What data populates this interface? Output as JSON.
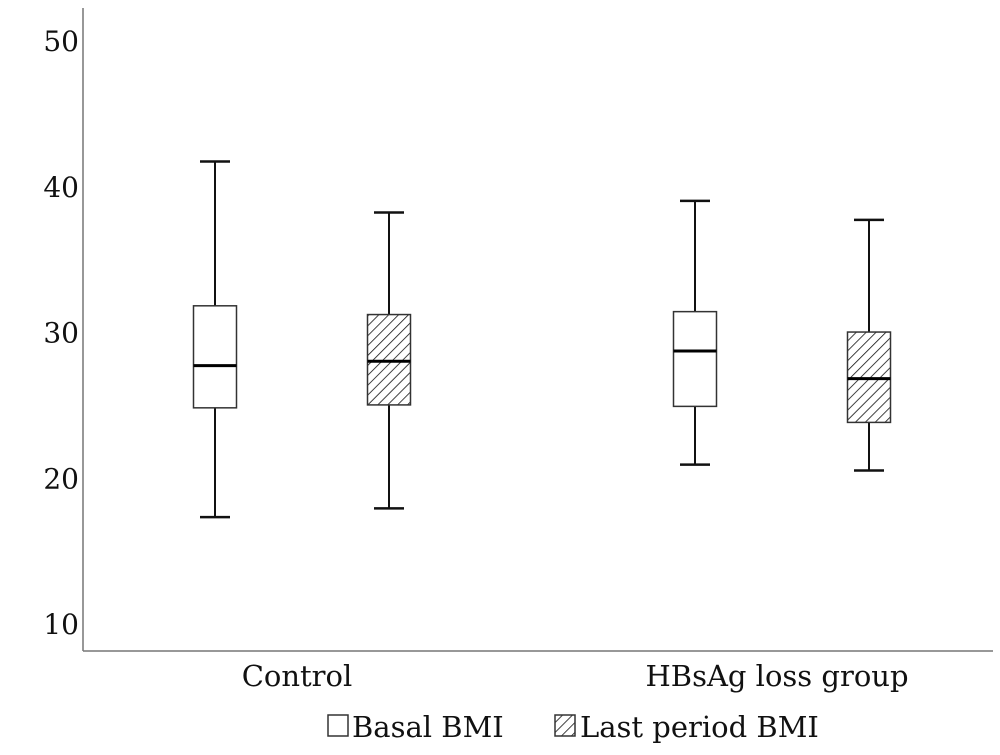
{
  "chart_data": {
    "type": "boxplot",
    "title": "",
    "xlabel": "",
    "ylabel": "",
    "ylim": [
      10,
      50
    ],
    "yticks": [
      10,
      20,
      30,
      40,
      50
    ],
    "grid": false,
    "legend_position": "bottom",
    "categories": [
      "Control",
      "HBsAg loss group"
    ],
    "series": [
      {
        "name": "Basal BMI",
        "pattern": "none",
        "fill": "#ffffff",
        "stroke": "#111111",
        "boxes": [
          {
            "category": "Control",
            "min": 17.4,
            "q1": 24.9,
            "median": 27.8,
            "q3": 31.9,
            "max": 41.8
          },
          {
            "category": "HBsAg loss group",
            "min": 21.0,
            "q1": 25.0,
            "median": 28.8,
            "q3": 31.5,
            "max": 39.1
          }
        ]
      },
      {
        "name": "Last period BMI",
        "pattern": "hatch",
        "fill": "#ffffff",
        "stroke": "#111111",
        "boxes": [
          {
            "category": "Control",
            "min": 18.0,
            "q1": 25.1,
            "median": 28.1,
            "q3": 31.3,
            "max": 38.3
          },
          {
            "category": "HBsAg loss group",
            "min": 20.6,
            "q1": 23.9,
            "median": 26.9,
            "q3": 30.1,
            "max": 37.8
          }
        ]
      }
    ]
  }
}
